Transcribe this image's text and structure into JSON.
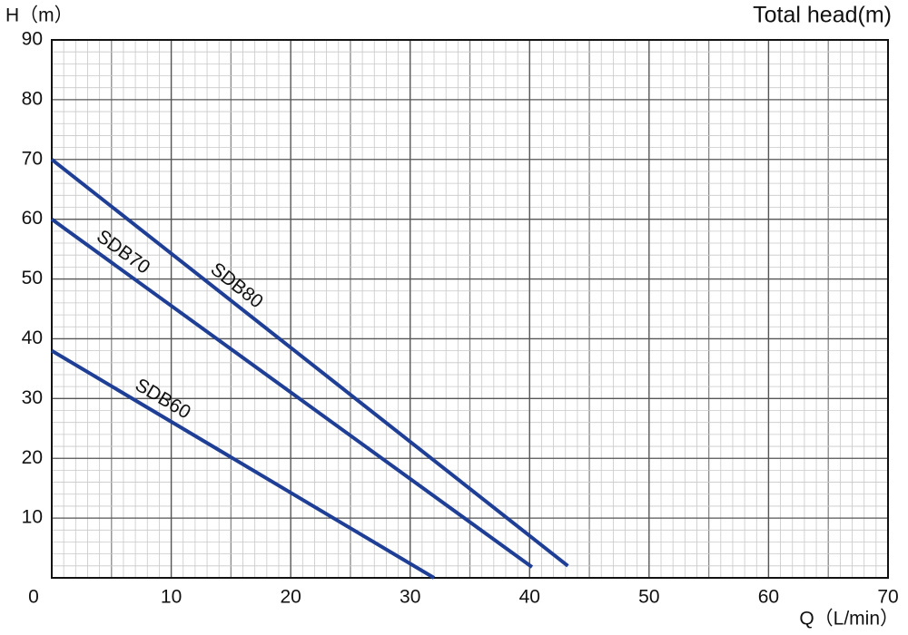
{
  "chart_data": {
    "type": "line",
    "y_axis_label": "H（m）",
    "title": "Total head(m)",
    "x_axis_label": "Q（L/min）",
    "series": [
      {
        "name": "SDB80",
        "color": "#1f3f96",
        "x": [
          0,
          43.2
        ],
        "values": [
          70,
          2
        ]
      },
      {
        "name": "SDB70",
        "color": "#1f3f96",
        "x": [
          0,
          40.2
        ],
        "values": [
          60,
          1.8
        ]
      },
      {
        "name": "SDB60",
        "color": "#1f3f96",
        "x": [
          0,
          32
        ],
        "values": [
          38,
          0
        ]
      }
    ],
    "xlim": [
      0,
      70
    ],
    "ylim": [
      0,
      90
    ],
    "xticks": [
      0,
      10,
      20,
      30,
      40,
      50,
      60,
      70
    ],
    "yticks": [
      10,
      20,
      30,
      40,
      50,
      60,
      70,
      80,
      90
    ],
    "grid": true
  }
}
